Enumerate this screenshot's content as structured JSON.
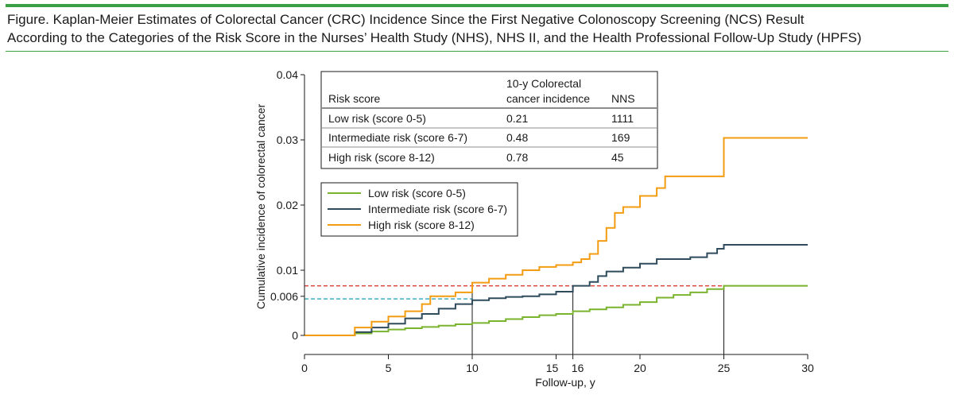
{
  "caption": {
    "line1": "Figure. Kaplan-Meier Estimates of Colorectal Cancer (CRC) Incidence Since the First Negative Colonoscopy Screening (NCS) Result",
    "line2": "According to the Categories of the Risk Score in the Nurses’ Health Study (NHS), NHS II, and the Health Professional Follow-Up Study (HPFS)"
  },
  "colors": {
    "accent": "#3aa046",
    "low": "#7ab32e",
    "intermediate": "#2f4b5c",
    "high": "#f39c12",
    "ref_red": "#e03c31",
    "ref_blue": "#2aa3c4"
  },
  "table": {
    "headers": {
      "risk": "Risk score",
      "incidence_line1": "10-y Colorectal",
      "incidence_line2": "cancer incidence",
      "nns": "NNS"
    },
    "rows": [
      {
        "risk": "Low risk (score 0-5)",
        "incidence": "0.21",
        "nns": "1111"
      },
      {
        "risk": "Intermediate risk (score 6-7)",
        "incidence": "0.48",
        "nns": "169"
      },
      {
        "risk": "High risk (score 8-12)",
        "incidence": "0.78",
        "nns": "45"
      }
    ]
  },
  "chart_data": {
    "type": "line",
    "step": true,
    "xlabel": "Follow-up, y",
    "ylabel": "Cumulative incidence of colorectal cancer",
    "xlim": [
      0,
      30
    ],
    "ylim": [
      0,
      0.04
    ],
    "xticks": [
      0,
      5,
      10,
      15,
      16,
      20,
      25,
      30
    ],
    "xtick_labels": [
      "0",
      "5",
      "10",
      "15",
      "16",
      "20",
      "25",
      "30"
    ],
    "yticks": [
      0,
      0.006,
      0.01,
      0.02,
      0.03,
      0.04
    ],
    "ytick_labels": [
      "0",
      "0.006",
      "0.01",
      "0.02",
      "0.03",
      "0.04"
    ],
    "grid": false,
    "legend_position": "upper-left",
    "reference_lines": [
      {
        "y": 0.0076,
        "x_end": 25,
        "color": "red",
        "style": "dashed"
      },
      {
        "y": 0.0056,
        "x_end": 10,
        "color": "blue",
        "style": "dashed"
      }
    ],
    "vertical_markers": [
      {
        "x": 10,
        "y": 0.0078
      },
      {
        "x": 16,
        "y": 0.0076
      },
      {
        "x": 25,
        "y": 0.0076
      }
    ],
    "series": [
      {
        "name": "Low risk (score 0-5)",
        "x": [
          0,
          2.2,
          3,
          4,
          5,
          6,
          7,
          8,
          9,
          10,
          11,
          12,
          13,
          14,
          15,
          16,
          17,
          18,
          19,
          20,
          21,
          22,
          23,
          24,
          25,
          30
        ],
        "y": [
          0,
          0,
          0.0003,
          0.0006,
          0.0009,
          0.0011,
          0.0013,
          0.0015,
          0.0017,
          0.0019,
          0.0022,
          0.0025,
          0.0028,
          0.0031,
          0.0033,
          0.0037,
          0.004,
          0.0043,
          0.0047,
          0.0051,
          0.0058,
          0.0062,
          0.0066,
          0.0071,
          0.0076,
          0.0076
        ]
      },
      {
        "name": "Intermediate risk (score 6-7)",
        "x": [
          0,
          2.2,
          3,
          4,
          5,
          6,
          7,
          8,
          9,
          10,
          11,
          12,
          13,
          14,
          15,
          16,
          17,
          17.5,
          18,
          19,
          20,
          21,
          22,
          23,
          24,
          24.6,
          25,
          30
        ],
        "y": [
          0,
          0,
          0.0005,
          0.0012,
          0.0018,
          0.0026,
          0.0033,
          0.0041,
          0.0048,
          0.0054,
          0.0057,
          0.0059,
          0.006,
          0.0063,
          0.0067,
          0.0076,
          0.0082,
          0.0091,
          0.0098,
          0.0104,
          0.011,
          0.0117,
          0.0117,
          0.012,
          0.0126,
          0.0133,
          0.0139,
          0.0139
        ]
      },
      {
        "name": "High risk (score 8-12)",
        "x": [
          0,
          2,
          3,
          4,
          5,
          6,
          7,
          7.5,
          9,
          10,
          11,
          12,
          13,
          14,
          15,
          16,
          16.5,
          17,
          17.5,
          18,
          18.5,
          19,
          20,
          20.5,
          21,
          21.5,
          22,
          23,
          24,
          25,
          30
        ],
        "y": [
          0,
          0,
          0.0012,
          0.0021,
          0.0029,
          0.0037,
          0.0048,
          0.006,
          0.0066,
          0.0081,
          0.0087,
          0.0093,
          0.01,
          0.0105,
          0.0108,
          0.0112,
          0.0117,
          0.0125,
          0.0145,
          0.0165,
          0.0188,
          0.0197,
          0.0214,
          0.0214,
          0.0226,
          0.0244,
          0.0244,
          0.0244,
          0.0244,
          0.0303,
          0.0303
        ]
      }
    ]
  }
}
